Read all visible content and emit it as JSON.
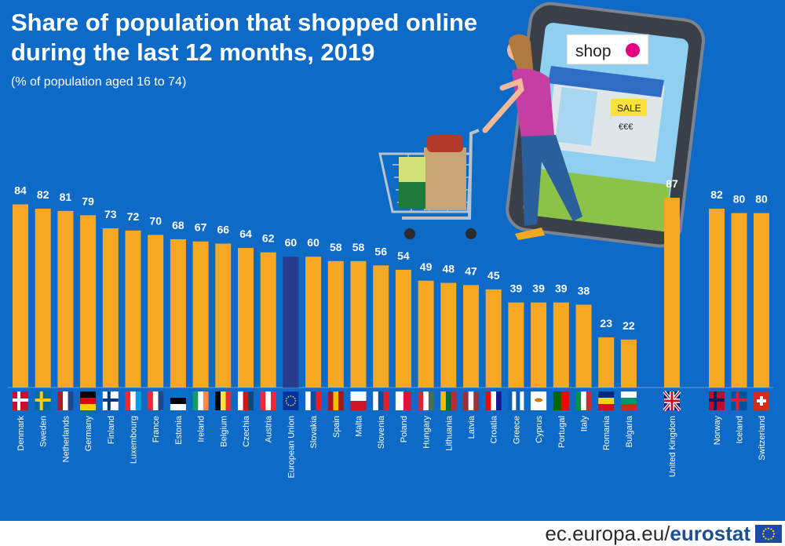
{
  "title_line1": "Share of population that shopped online",
  "title_line2": "during the last 12 months, 2019",
  "subtitle": "(% of population aged 16 to 74)",
  "illustration": {
    "shop_sign": "shop",
    "sale_sign": "SALE",
    "price_sign": "€€€"
  },
  "footer": {
    "site": "ec.europa.eu/",
    "brand": "eurostat"
  },
  "colors": {
    "background": "#0e6ac7",
    "bar": "#f7a823",
    "eu_bar": "#273b8f",
    "text": "#ffffff"
  },
  "chart_data": {
    "type": "bar",
    "title": "Share of population that shopped online during the last 12 months, 2019",
    "subtitle": "(% of population aged 16 to 74)",
    "xlabel": "",
    "ylabel": "",
    "ylim": [
      0,
      100
    ],
    "grid": false,
    "categories": [
      "Denmark",
      "Sweden",
      "Netherlands",
      "Germany",
      "Finland",
      "Luxembourg",
      "France",
      "Estonia",
      "Ireland",
      "Belgium",
      "Czechia",
      "Austria",
      "European Union",
      "Slovakia",
      "Spain",
      "Malta",
      "Slovenia",
      "Poland",
      "Hungary",
      "Lithuania",
      "Latvia",
      "Croatia",
      "Greece",
      "Cyprus",
      "Portugal",
      "Italy",
      "Romania",
      "Bulgaria",
      "United Kingdom",
      "Norway",
      "Iceland",
      "Switzerland"
    ],
    "values": [
      84,
      82,
      81,
      79,
      73,
      72,
      70,
      68,
      67,
      66,
      64,
      62,
      60,
      60,
      58,
      58,
      56,
      54,
      49,
      48,
      47,
      45,
      39,
      39,
      39,
      38,
      23,
      22,
      87,
      82,
      80,
      80
    ],
    "highlight": "European Union"
  }
}
